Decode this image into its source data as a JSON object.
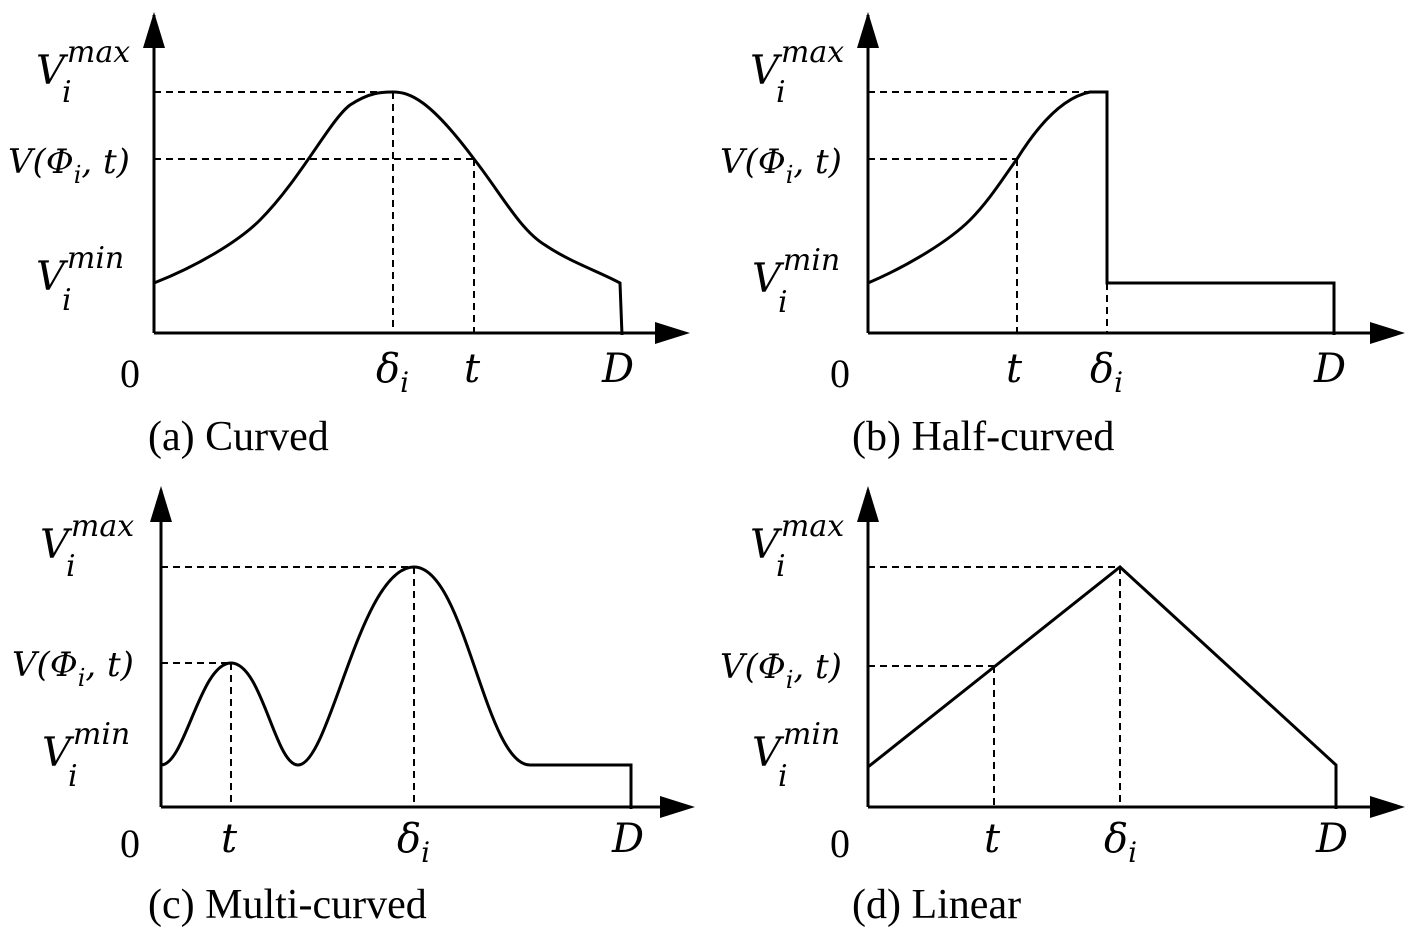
{
  "colors": {
    "stroke": "#000000",
    "background": "#ffffff"
  },
  "labels": {
    "v_var": "V",
    "v_sub": "i",
    "sup_max": "max",
    "sup_min": "min",
    "v_phi": "V(Φ",
    "v_phi_sub": "i",
    "v_phi_tail": ", t)",
    "origin": "0",
    "delta": "δ",
    "delta_sub": "i",
    "t": "t",
    "d": "D"
  },
  "chart_data": [
    {
      "type": "line",
      "title": "(a) Curved",
      "x_ticks": [
        "0",
        "δi",
        "t",
        "D"
      ],
      "y_ticks": [
        "Vi^min",
        "V(Φi, t)",
        "Vi^max"
      ],
      "series": [
        {
          "x": [
            0,
            0.25,
            0.5,
            0.75,
            1.0,
            1.25,
            1.5,
            1.75,
            2.0,
            2.25,
            2.5,
            2.75,
            2.96
          ],
          "y": [
            0.21,
            0.26,
            0.33,
            0.45,
            0.61,
            0.79,
            0.98,
            0.81,
            0.62,
            0.45,
            0.33,
            0.24,
            0.21
          ]
        }
      ],
      "markers": {
        "delta_x": 1.5,
        "t_x": 2.0,
        "D_x": 2.96,
        "v_phi_y": 0.71
      }
    },
    {
      "type": "line",
      "title": "(b) Half-curved",
      "x_ticks": [
        "0",
        "t",
        "δi",
        "D"
      ],
      "y_ticks": [
        "Vi^min",
        "V(Φi, t)",
        "Vi^max"
      ],
      "series": [
        {
          "x": [
            0,
            0.25,
            0.5,
            0.75,
            1.0,
            1.25,
            1.5,
            1.75,
            1.83,
            1.83,
            3.0
          ],
          "y": [
            0.21,
            0.26,
            0.33,
            0.45,
            0.61,
            0.79,
            0.93,
            0.98,
            0.98,
            0.21,
            0.21
          ]
        }
      ],
      "markers": {
        "t_x": 1.0,
        "delta_x": 1.83,
        "D_x": 3.0,
        "v_phi_y": 0.71
      }
    },
    {
      "type": "line",
      "title": "(c) Multi-curved",
      "x_ticks": [
        "0",
        "t",
        "δi",
        "D"
      ],
      "y_ticks": [
        "Vi^min",
        "V(Φi, t)",
        "Vi^max"
      ],
      "series": [
        {
          "x": [
            0,
            0.4,
            0.72,
            1.0,
            1.4,
            1.75,
            2.0,
            2.25,
            2.6,
            3.0,
            3.35
          ],
          "y": [
            0.21,
            0.6,
            0.21,
            0.21,
            0.6,
            0.98,
            0.98,
            0.6,
            0.21,
            0.21,
            0.21
          ]
        }
      ],
      "markers": {
        "t_x": 0.4,
        "delta_x": 1.75,
        "D_x": 3.35,
        "v_phi_y": 0.6
      }
    },
    {
      "type": "line",
      "title": "(d) Linear",
      "x_ticks": [
        "0",
        "t",
        "δi",
        "D"
      ],
      "y_ticks": [
        "Vi^min",
        "V(Φi, t)",
        "Vi^max"
      ],
      "series": [
        {
          "x": [
            0,
            1.0,
            2.0,
            3.0
          ],
          "y": [
            0.21,
            0.6,
            1.0,
            0.21
          ]
        }
      ],
      "markers": {
        "t_x": 1.0,
        "delta_x": 2.0,
        "D_x": 3.0,
        "v_phi_y": 0.6
      }
    }
  ]
}
